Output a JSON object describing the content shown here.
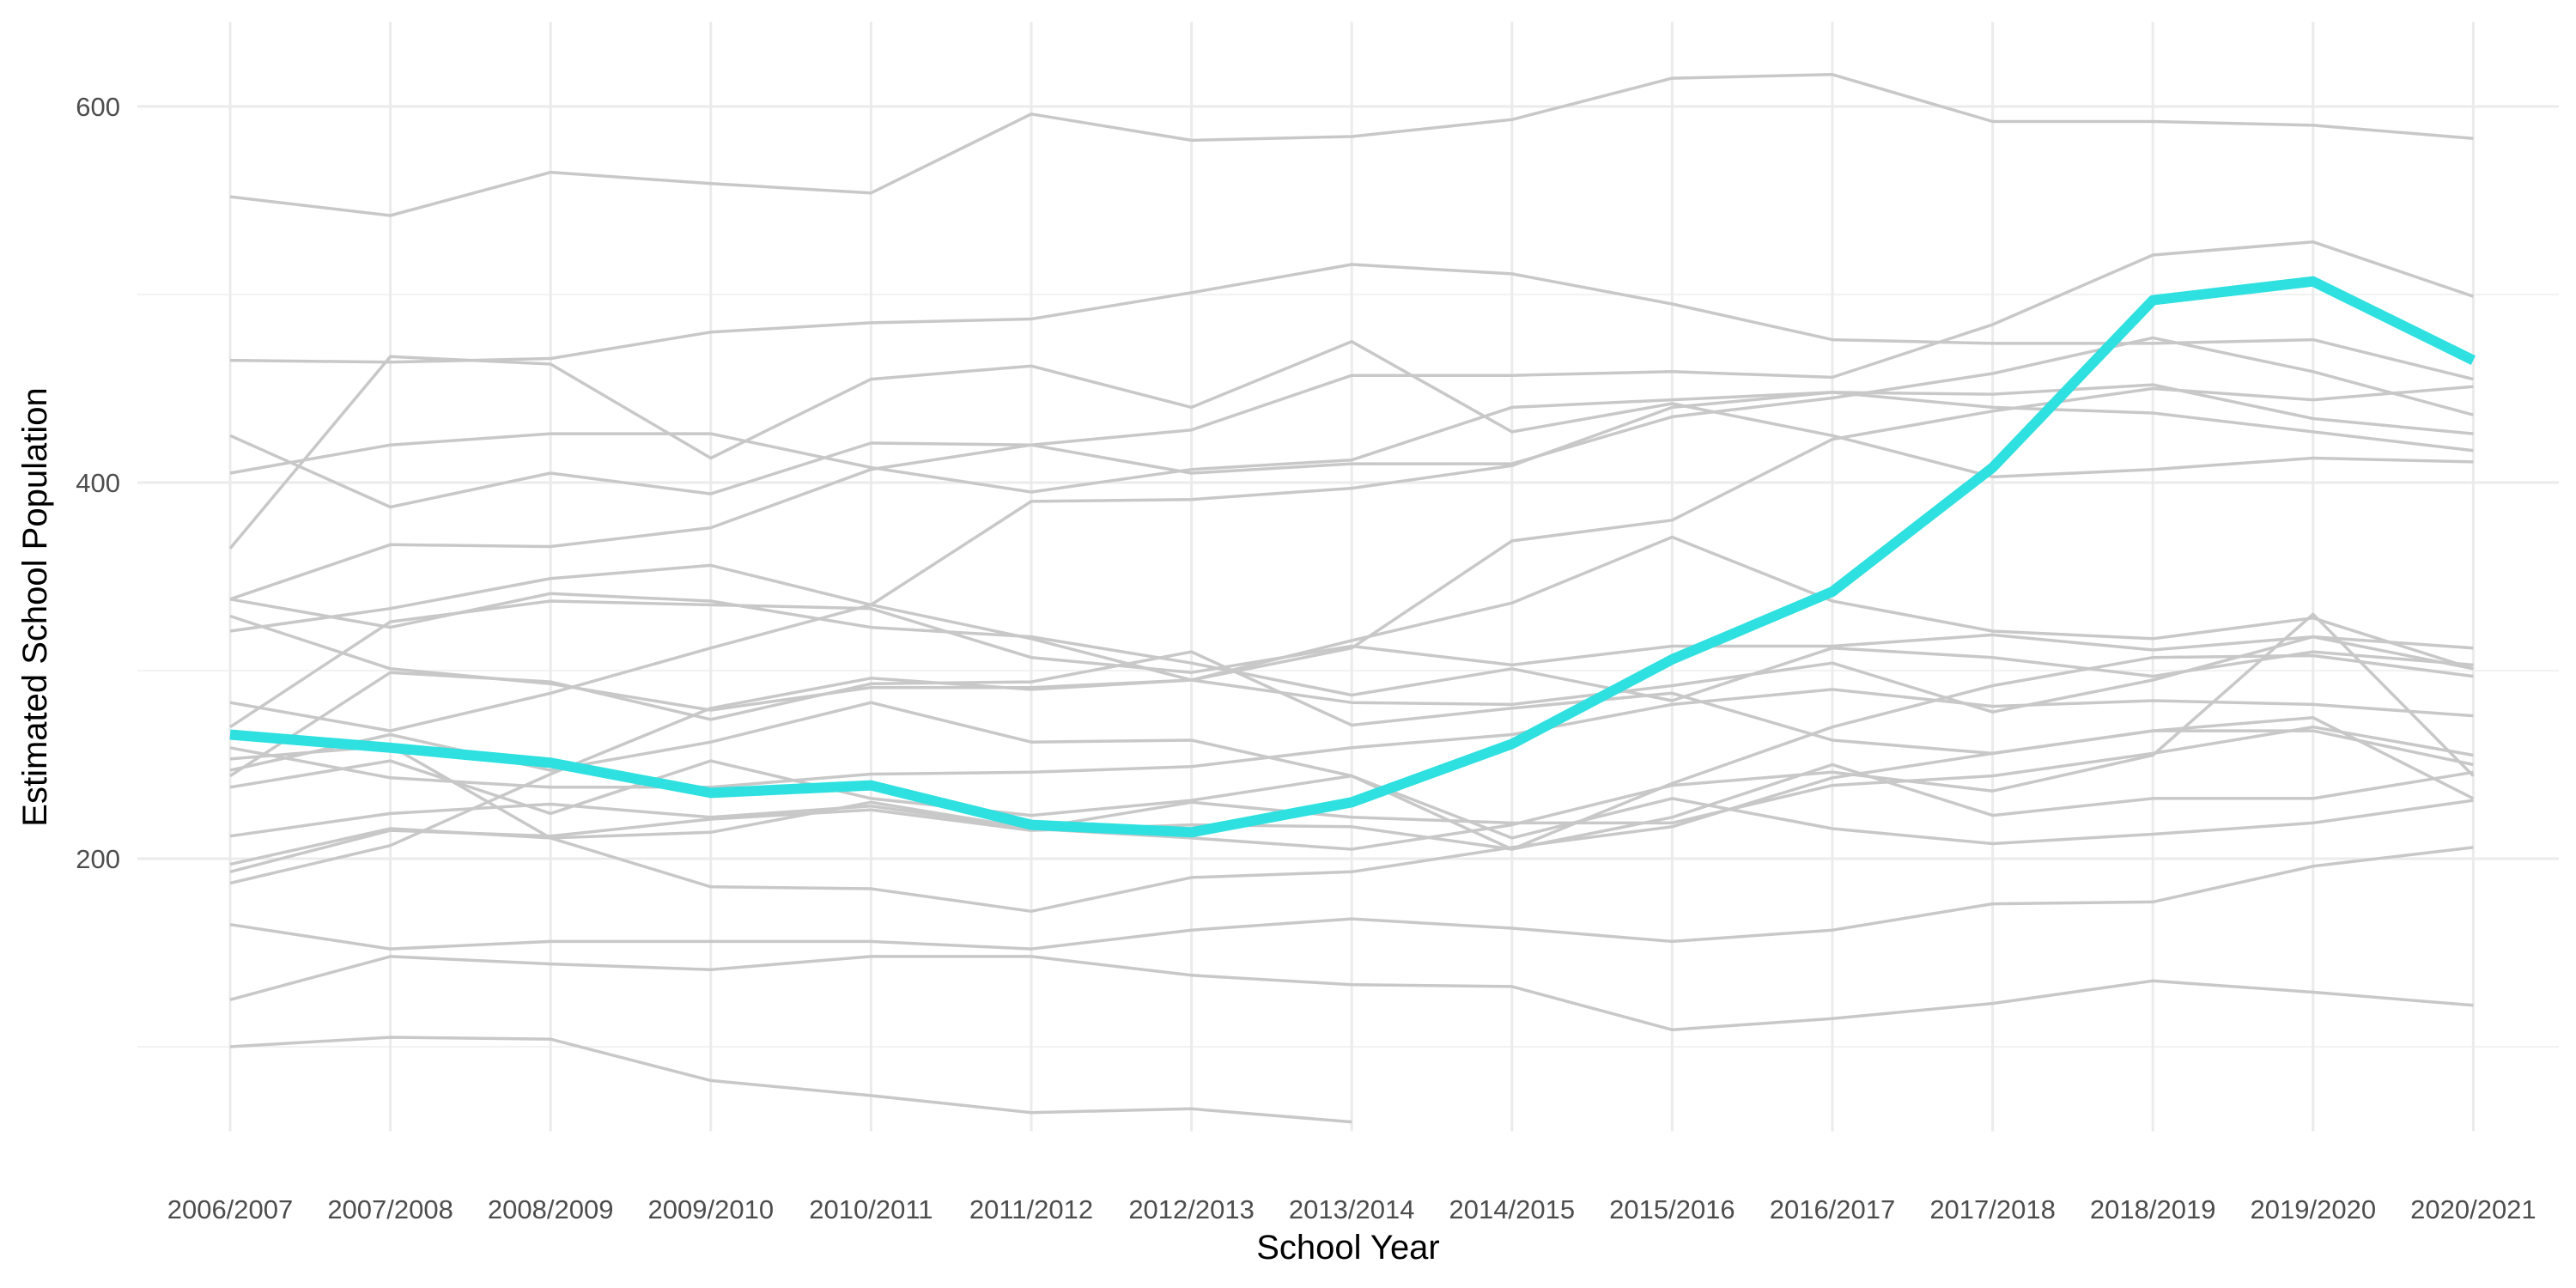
{
  "chart_data": {
    "type": "line",
    "xlabel": "School Year",
    "ylabel": "Estimated School Population",
    "x": [
      "2006/2007",
      "2007/2008",
      "2008/2009",
      "2009/2010",
      "2010/2011",
      "2011/2012",
      "2012/2013",
      "2013/2014",
      "2014/2015",
      "2015/2016",
      "2016/2017",
      "2017/2018",
      "2018/2019",
      "2019/2020",
      "2020/2021"
    ],
    "y_ticks": [
      200,
      400,
      600
    ],
    "ylim": [
      55,
      645
    ],
    "grid": true,
    "legend": "none",
    "colors": {
      "background_series": "#c8c8c8",
      "highlight": "#2ee0e0",
      "grid": "#ebebeb",
      "tick_label": "#4d4d4d"
    },
    "highlight_series": {
      "values": [
        266,
        259,
        251,
        235,
        239,
        218,
        214,
        230,
        261,
        306,
        342,
        408,
        497,
        507,
        465
      ]
    },
    "series": [
      {
        "values": [
          552,
          542,
          565,
          559,
          554,
          596,
          582,
          584,
          593,
          615,
          617,
          592,
          592,
          590,
          583
        ]
      },
      {
        "values": [
          465,
          464,
          466,
          480,
          485,
          487,
          501,
          516,
          511,
          495,
          476,
          474,
          474,
          476,
          455
        ]
      },
      {
        "values": [
          365,
          467,
          463,
          413,
          455,
          462,
          440,
          475,
          427,
          442,
          425,
          403,
          407,
          413,
          411
        ]
      },
      {
        "values": [
          425,
          387,
          405,
          394,
          421,
          420,
          405,
          410,
          410,
          435,
          445,
          458,
          477,
          459,
          436
        ]
      },
      {
        "values": [
          405,
          420,
          426,
          426,
          408,
          395,
          407,
          412,
          440,
          444,
          448,
          447,
          452,
          434,
          426
        ]
      },
      {
        "values": [
          338,
          367,
          366,
          376,
          407,
          420,
          428,
          457,
          457,
          459,
          456,
          484,
          521,
          528,
          499
        ]
      },
      {
        "values": [
          321,
          333,
          349,
          356,
          335,
          390,
          391,
          397,
          409,
          440,
          448,
          440,
          437,
          427,
          417
        ]
      },
      {
        "values": [
          338,
          323,
          341,
          337,
          323,
          318,
          304,
          287,
          301,
          284,
          312,
          307,
          297,
          310,
          303
        ]
      },
      {
        "values": [
          329,
          301,
          293,
          279,
          291,
          291,
          295,
          283,
          282,
          292,
          304,
          278,
          295,
          318,
          301
        ]
      },
      {
        "values": [
          270,
          326,
          337,
          335,
          333,
          307,
          299,
          313,
          303,
          313,
          313,
          319,
          311,
          318,
          312
        ]
      },
      {
        "values": [
          283,
          268,
          288,
          312,
          335,
          317,
          295,
          316,
          336,
          371,
          337,
          321,
          317,
          328,
          301
        ]
      },
      {
        "values": [
          247,
          266,
          247,
          262,
          283,
          262,
          263,
          244,
          205,
          240,
          270,
          292,
          307,
          308,
          297
        ]
      },
      {
        "values": [
          244,
          299,
          294,
          274,
          293,
          294,
          310,
          271,
          280,
          288,
          263,
          256,
          268,
          268,
          250
        ]
      },
      {
        "values": [
          259,
          243,
          238,
          238,
          245,
          246,
          249,
          259,
          266,
          282,
          290,
          281,
          284,
          282,
          276
        ]
      },
      {
        "values": [
          238,
          252,
          224,
          252,
          232,
          223,
          231,
          244,
          211,
          232,
          216,
          208,
          213,
          219,
          231
        ]
      },
      {
        "values": [
          212,
          224,
          229,
          222,
          228,
          216,
          230,
          222,
          219,
          219,
          239,
          244,
          256,
          270,
          255
        ]
      },
      {
        "values": [
          197,
          216,
          211,
          214,
          230,
          216,
          211,
          205,
          218,
          239,
          246,
          236,
          255,
          330,
          244
        ]
      },
      {
        "values": [
          193,
          215,
          212,
          221,
          226,
          215,
          218,
          217,
          205,
          222,
          250,
          223,
          232,
          232,
          246
        ]
      },
      {
        "values": [
          187,
          207,
          245,
          280,
          296,
          290,
          295,
          312,
          369,
          380,
          423,
          438,
          450,
          444,
          451
        ]
      },
      {
        "values": [
          165,
          152,
          156,
          156,
          156,
          152,
          162,
          168,
          163,
          156,
          162,
          176,
          177,
          196,
          206
        ]
      },
      {
        "values": [
          125,
          148,
          144,
          141,
          148,
          148,
          138,
          133,
          132,
          109,
          115,
          123,
          135,
          129,
          122
        ]
      },
      {
        "values": [
          100,
          105,
          104,
          82,
          74,
          65,
          67,
          60,
          null,
          null,
          null,
          null,
          null,
          null,
          null
        ]
      },
      {
        "values": [
          253,
          260,
          211,
          185,
          184,
          172,
          190,
          193,
          206,
          217,
          243,
          256,
          268,
          275,
          232
        ]
      }
    ]
  }
}
